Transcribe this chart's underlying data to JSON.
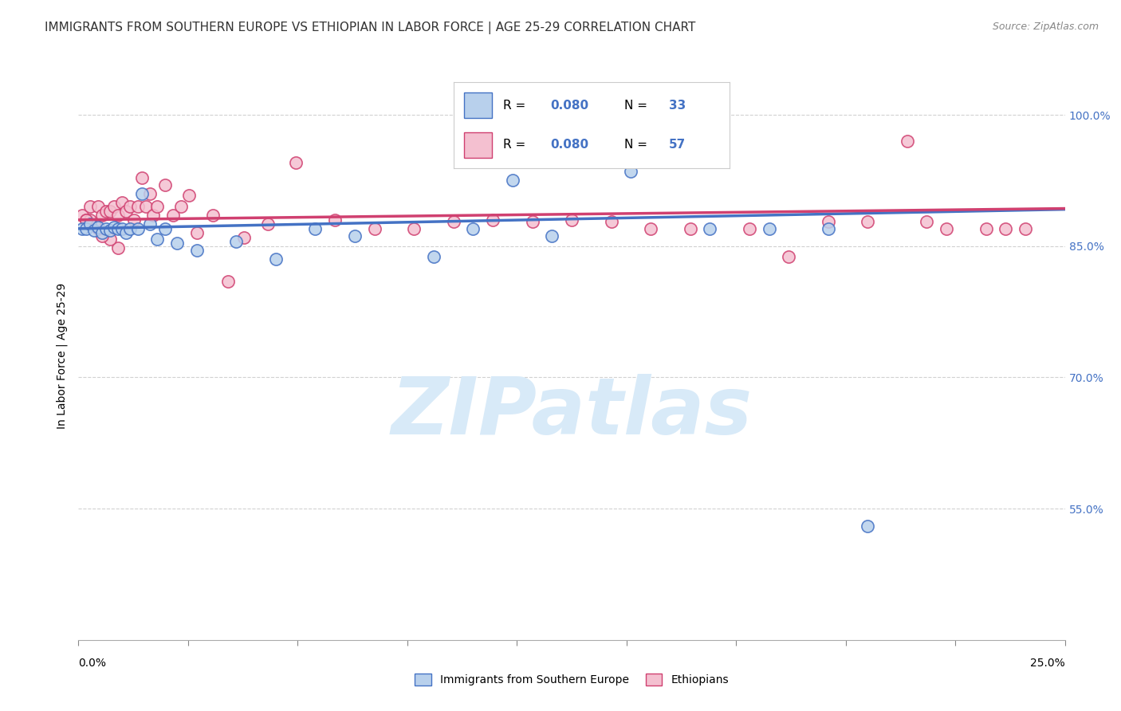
{
  "title": "IMMIGRANTS FROM SOUTHERN EUROPE VS ETHIOPIAN IN LABOR FORCE | AGE 25-29 CORRELATION CHART",
  "source": "Source: ZipAtlas.com",
  "ylabel": "In Labor Force | Age 25-29",
  "y_ticks": [
    0.55,
    0.7,
    0.85,
    1.0
  ],
  "y_tick_labels": [
    "55.0%",
    "70.0%",
    "85.0%",
    "100.0%"
  ],
  "x_range": [
    0.0,
    0.25
  ],
  "y_range": [
    0.4,
    1.05
  ],
  "legend_label_blue": "Immigrants from Southern Europe",
  "legend_label_pink": "Ethiopians",
  "blue_color": "#aac4e8",
  "pink_color": "#f0b0c0",
  "blue_line_color": "#4472c4",
  "pink_line_color": "#d04070",
  "blue_scatter_color": "#b8d0ec",
  "pink_scatter_color": "#f4c0d0",
  "scatter_blue_x": [
    0.001,
    0.002,
    0.003,
    0.004,
    0.005,
    0.006,
    0.007,
    0.008,
    0.009,
    0.01,
    0.011,
    0.012,
    0.013,
    0.015,
    0.016,
    0.018,
    0.02,
    0.022,
    0.025,
    0.03,
    0.04,
    0.05,
    0.06,
    0.07,
    0.09,
    0.1,
    0.11,
    0.12,
    0.14,
    0.16,
    0.175,
    0.19,
    0.2
  ],
  "scatter_blue_y": [
    0.87,
    0.87,
    0.875,
    0.868,
    0.872,
    0.865,
    0.87,
    0.868,
    0.872,
    0.87,
    0.87,
    0.865,
    0.87,
    0.87,
    0.91,
    0.875,
    0.858,
    0.87,
    0.853,
    0.845,
    0.855,
    0.835,
    0.87,
    0.862,
    0.838,
    0.87,
    0.925,
    0.862,
    0.935,
    0.87,
    0.87,
    0.87,
    0.53
  ],
  "scatter_pink_x": [
    0.001,
    0.002,
    0.003,
    0.004,
    0.005,
    0.006,
    0.007,
    0.008,
    0.009,
    0.01,
    0.011,
    0.012,
    0.013,
    0.014,
    0.015,
    0.016,
    0.017,
    0.018,
    0.019,
    0.02,
    0.022,
    0.024,
    0.026,
    0.028,
    0.03,
    0.034,
    0.038,
    0.042,
    0.048,
    0.055,
    0.065,
    0.075,
    0.085,
    0.095,
    0.105,
    0.115,
    0.125,
    0.135,
    0.145,
    0.155,
    0.17,
    0.18,
    0.19,
    0.2,
    0.21,
    0.215,
    0.22,
    0.23,
    0.235,
    0.24,
    0.01,
    0.008,
    0.006,
    0.005,
    0.004,
    0.003,
    0.002
  ],
  "scatter_pink_y": [
    0.885,
    0.88,
    0.895,
    0.875,
    0.895,
    0.885,
    0.89,
    0.89,
    0.895,
    0.885,
    0.9,
    0.89,
    0.895,
    0.88,
    0.895,
    0.928,
    0.895,
    0.91,
    0.885,
    0.895,
    0.92,
    0.885,
    0.895,
    0.908,
    0.865,
    0.885,
    0.81,
    0.86,
    0.875,
    0.945,
    0.88,
    0.87,
    0.87,
    0.878,
    0.88,
    0.878,
    0.88,
    0.878,
    0.87,
    0.87,
    0.87,
    0.838,
    0.878,
    0.878,
    0.97,
    0.878,
    0.87,
    0.87,
    0.87,
    0.87,
    0.848,
    0.858,
    0.862,
    0.87,
    0.875,
    0.88,
    0.88
  ],
  "watermark_text": "ZIPatlas",
  "watermark_color": "#d8eaf8",
  "background_color": "#ffffff",
  "grid_color": "#cccccc",
  "title_fontsize": 11,
  "axis_label_fontsize": 10,
  "tick_fontsize": 10,
  "scatter_size": 120
}
